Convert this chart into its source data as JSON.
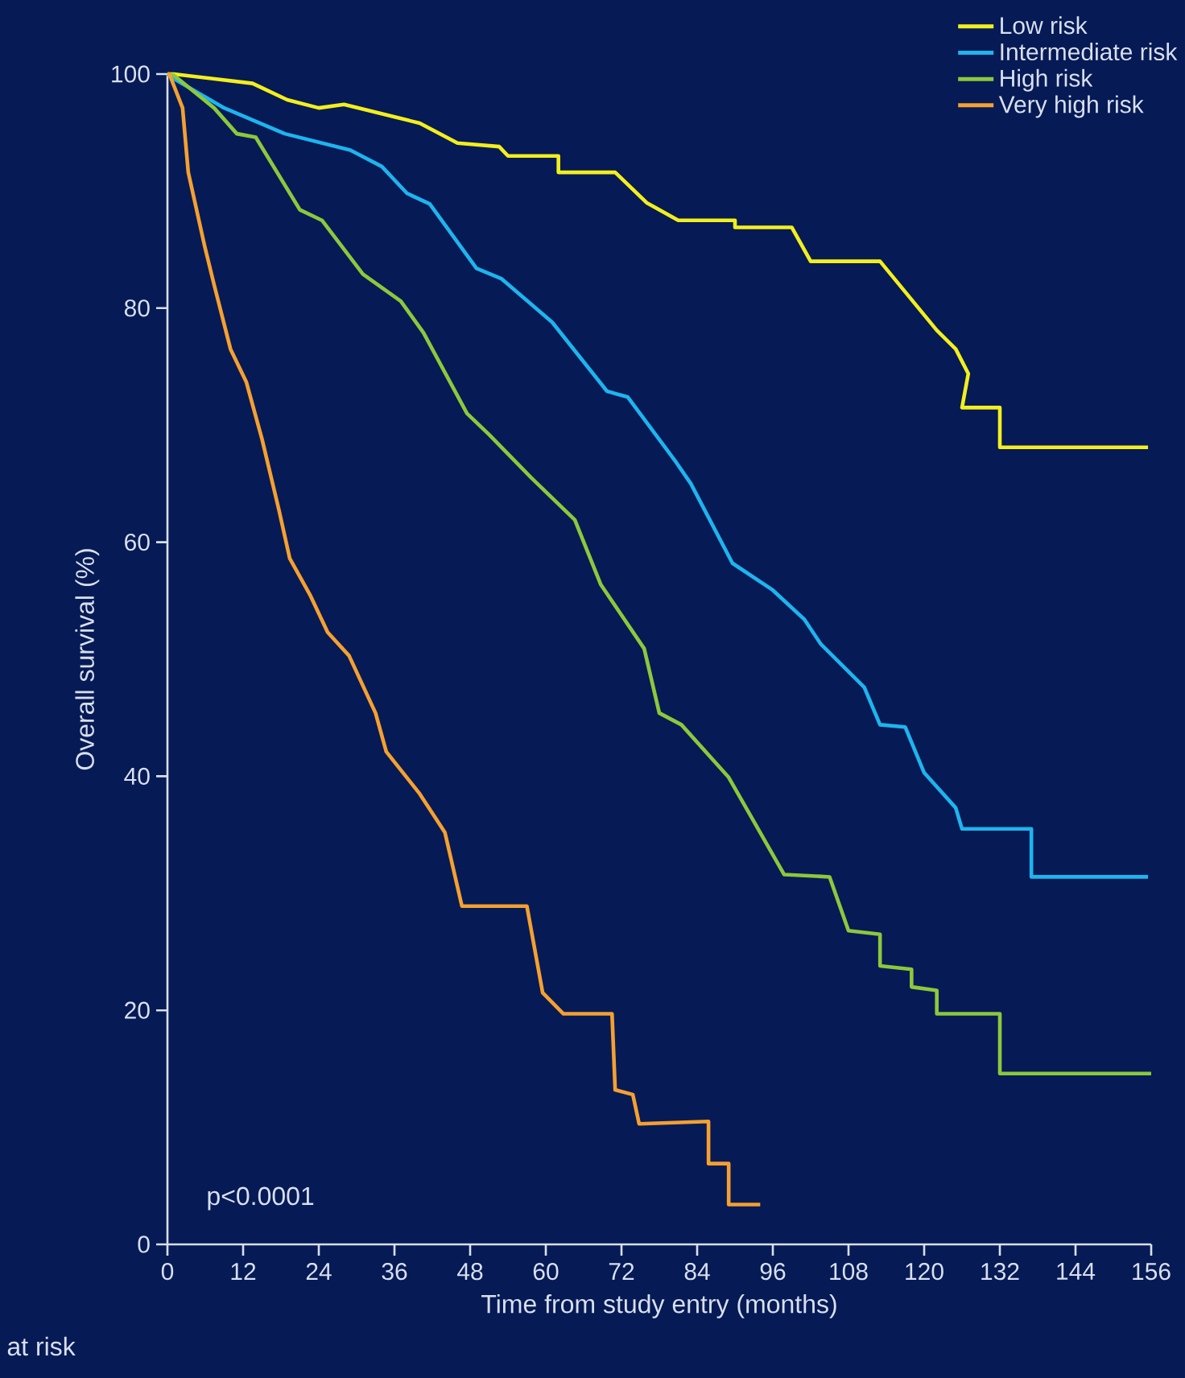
{
  "chart_data": {
    "type": "line",
    "xlabel": "Time from study entry (months)",
    "ylabel": "Overall survival (%)",
    "xlim": [
      0,
      156
    ],
    "ylim": [
      0,
      100
    ],
    "xticks": [
      0,
      12,
      24,
      36,
      48,
      60,
      72,
      84,
      96,
      108,
      120,
      132,
      144,
      156
    ],
    "yticks": [
      0,
      20,
      40,
      60,
      80,
      100
    ],
    "legend": "top right",
    "annotations": [
      "p<0.0001",
      "at risk"
    ],
    "series": [
      {
        "name": "Low risk",
        "color": "#f2ef1e",
        "x": [
          0,
          1,
          13.5,
          19,
          24,
          28,
          40,
          46,
          52.6,
          54,
          62,
          62,
          71,
          76,
          81,
          90,
          90,
          99,
          102,
          113,
          122,
          125,
          127,
          126,
          132,
          132,
          155.5
        ],
        "values": [
          100,
          100,
          99.2,
          97.8,
          97.1,
          97.4,
          95.8,
          94.1,
          93.8,
          93,
          93,
          91.6,
          91.6,
          89,
          87.5,
          87.5,
          86.9,
          86.9,
          84,
          84,
          78.1,
          76.5,
          74.4,
          71.5,
          71.5,
          68.1,
          68.1
        ]
      },
      {
        "name": "Intermediate risk",
        "color": "#1eb4ee",
        "x": [
          0,
          1,
          9,
          18.6,
          29,
          34,
          38,
          41.6,
          49,
          53,
          61,
          69.7,
          73,
          80.7,
          83,
          89.6,
          96,
          101,
          103.6,
          110.5,
          113,
          117,
          120,
          125,
          126,
          137,
          137,
          155.5
        ],
        "values": [
          100,
          99.6,
          97.1,
          94.9,
          93.5,
          92.1,
          89.8,
          88.9,
          83.4,
          82.5,
          78.8,
          72.9,
          72.4,
          66.8,
          65,
          58.2,
          55.9,
          53.4,
          51.3,
          47.6,
          44.4,
          44.2,
          40.3,
          37.3,
          35.5,
          35.5,
          31.4,
          31.4
        ]
      },
      {
        "name": "High risk",
        "color": "#8cc83c",
        "x": [
          0,
          1,
          7.4,
          11,
          14,
          21,
          24.5,
          31,
          37,
          40.6,
          47.5,
          51,
          57.7,
          64.6,
          68.7,
          75.6,
          78,
          81.5,
          89,
          97.8,
          105,
          108,
          113,
          113,
          118,
          118,
          122,
          122,
          132,
          132,
          156
        ],
        "values": [
          100,
          99.9,
          97.1,
          94.9,
          94.6,
          88.4,
          87.5,
          82.9,
          80.6,
          77.9,
          71,
          69.2,
          65.5,
          61.9,
          56.4,
          50.9,
          45.4,
          44.4,
          39.9,
          31.6,
          31.4,
          26.8,
          26.5,
          23.8,
          23.5,
          22,
          21.7,
          19.7,
          19.7,
          14.6,
          14.6
        ]
      },
      {
        "name": "Very high risk",
        "color": "#f5a030",
        "x": [
          0,
          0.3,
          2.4,
          3.3,
          5.9,
          7.4,
          10,
          12.5,
          15,
          17.7,
          19.4,
          22.7,
          25.4,
          28.8,
          33,
          34.7,
          40,
          44,
          46.7,
          57,
          59.5,
          62.8,
          70.5,
          71,
          73.8,
          74.8,
          85.8,
          85.8,
          89,
          89,
          94
        ],
        "values": [
          100,
          100,
          97.1,
          91.6,
          85.3,
          82,
          76.5,
          73.7,
          68.8,
          62.7,
          58.6,
          55.4,
          52.3,
          50.3,
          45.4,
          42.1,
          38.5,
          35.2,
          28.9,
          28.9,
          21.5,
          19.7,
          19.7,
          13.2,
          12.8,
          10.3,
          10.5,
          6.9,
          6.9,
          3.4,
          3.4
        ]
      }
    ]
  }
}
